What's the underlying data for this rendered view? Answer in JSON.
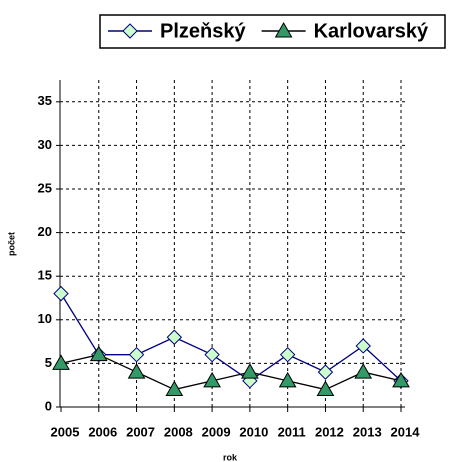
{
  "chart_data": {
    "type": "line",
    "x_label": "rok",
    "y_label": "počet",
    "categories": [
      "2005",
      "2006",
      "2007",
      "2008",
      "2009",
      "2010",
      "2011",
      "2012",
      "2013",
      "2014"
    ],
    "series": [
      {
        "name": "Plzeňský",
        "color": "#000080",
        "marker": "diamond",
        "marker_fill": "#ccffcc",
        "values": [
          13,
          6,
          6,
          8,
          6,
          3,
          6,
          4,
          7,
          3
        ]
      },
      {
        "name": "Karlovarský",
        "color": "#000000",
        "marker": "triangle",
        "marker_fill": "#339966",
        "values": [
          5,
          6,
          4,
          2,
          3,
          4,
          3,
          2,
          4,
          3
        ]
      }
    ],
    "ylim": [
      0,
      37.5
    ],
    "yticks": [
      0,
      5,
      10,
      15,
      20,
      25,
      30,
      35
    ],
    "grid": true,
    "legend": "top"
  }
}
